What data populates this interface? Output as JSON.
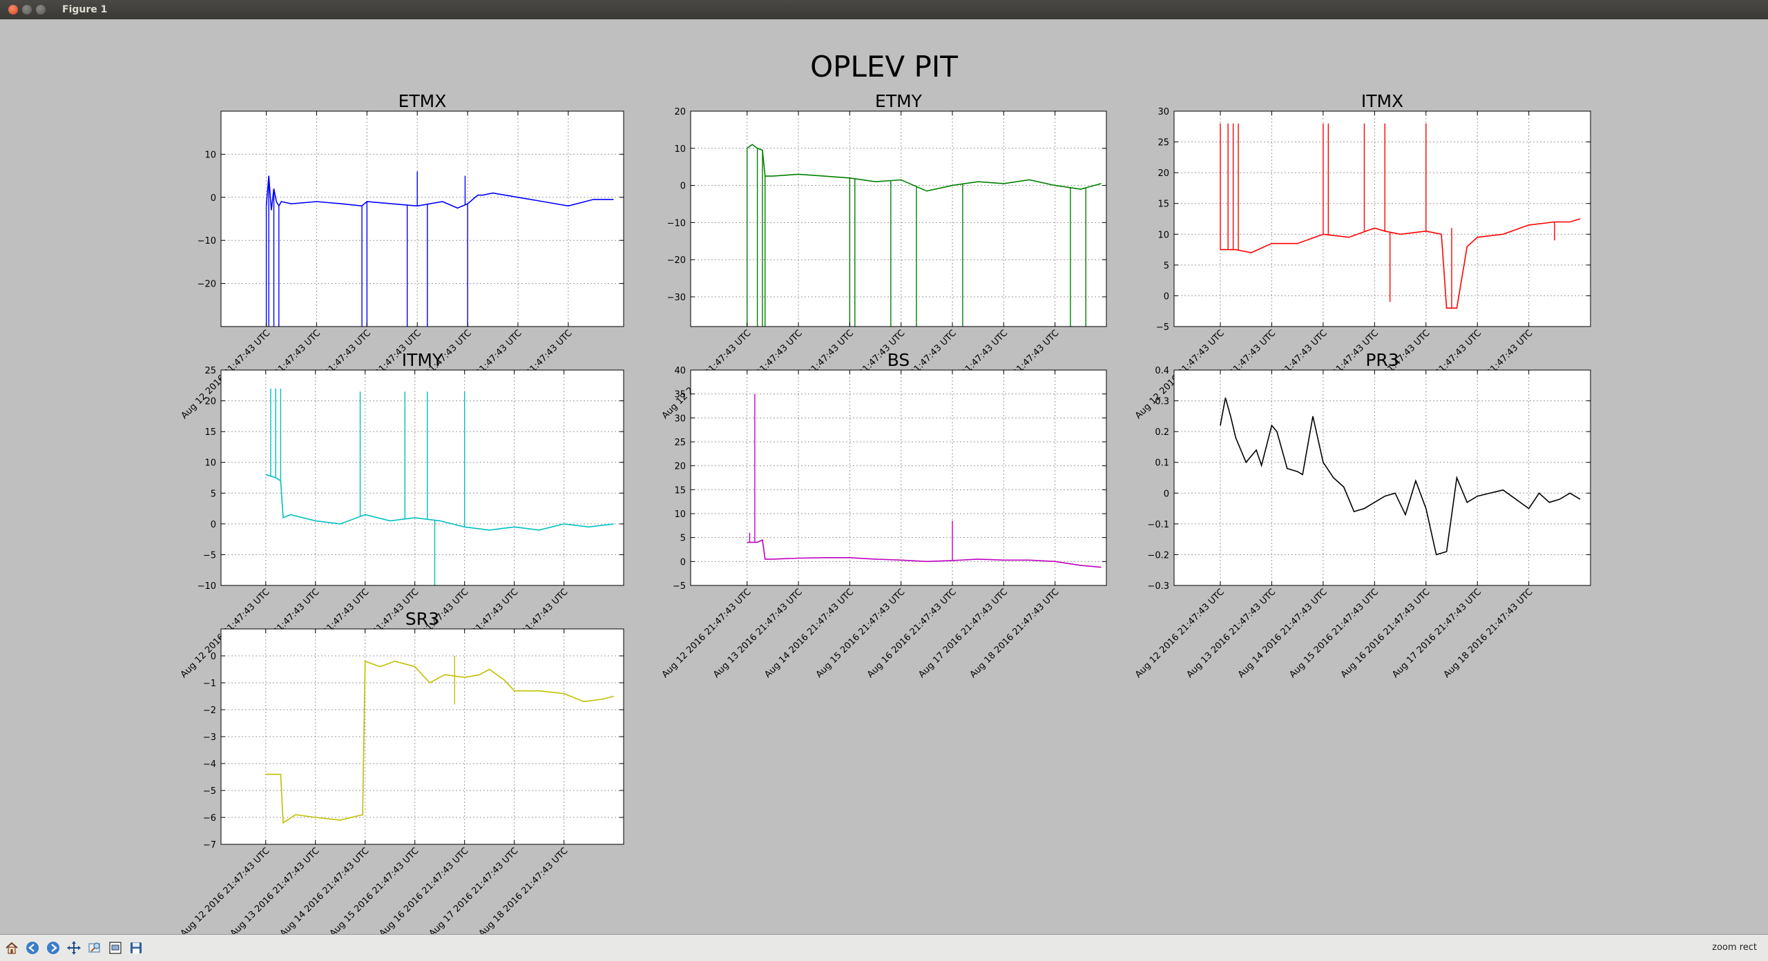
{
  "window": {
    "title": "Figure 1"
  },
  "figure": {
    "suptitle": "OPLEV PIT"
  },
  "toolbar": {
    "buttons": [
      {
        "name": "home-icon"
      },
      {
        "name": "back-icon"
      },
      {
        "name": "forward-icon"
      },
      {
        "name": "pan-icon"
      },
      {
        "name": "zoom-icon"
      },
      {
        "name": "configure-subplots-icon"
      },
      {
        "name": "save-icon"
      }
    ],
    "mode": "zoom rect"
  },
  "chart_data": [
    {
      "type": "line",
      "title": "ETMX",
      "color": "#0000ff",
      "x_tick_labels": [
        "Aug 12 2016 21:47:43 UTC",
        "Aug 13 2016 21:47:43 UTC",
        "Aug 14 2016 21:47:43 UTC",
        "Aug 15 2016 21:47:43 UTC",
        "Aug 16 2016 21:47:43 UTC",
        "Aug 17 2016 21:47:43 UTC",
        "Aug 18 2016 21:47:43 UTC"
      ],
      "xlim": [
        -0.9,
        7.1
      ],
      "ylim": [
        -30,
        20
      ],
      "yticks": [
        -20,
        -10,
        0,
        10
      ],
      "series": [
        {
          "x": [
            0.0,
            0.05,
            0.1,
            0.15,
            0.2,
            0.25,
            0.3,
            0.5,
            1.0,
            1.5,
            1.9,
            2.0,
            2.5,
            3.0,
            3.5,
            3.8,
            4.0,
            4.2,
            4.3,
            4.5,
            5.0,
            5.5,
            6.0,
            6.5,
            6.9
          ],
          "y": [
            -2.0,
            5.0,
            -3.0,
            2.0,
            -1.0,
            -2.0,
            -1.0,
            -1.5,
            -1.0,
            -1.5,
            -2.0,
            -1.0,
            -1.5,
            -2.0,
            -1.0,
            -2.5,
            -1.5,
            0.5,
            0.5,
            1.0,
            0.0,
            -1.0,
            -2.0,
            -0.5,
            -0.5
          ]
        }
      ],
      "spikes": [
        {
          "x": 0.0,
          "y": -30
        },
        {
          "x": 0.05,
          "y": -30
        },
        {
          "x": 0.15,
          "y": -30
        },
        {
          "x": 0.25,
          "y": -30
        },
        {
          "x": 1.9,
          "y": -30
        },
        {
          "x": 2.0,
          "y": -30
        },
        {
          "x": 2.8,
          "y": -30
        },
        {
          "x": 3.2,
          "y": -30
        },
        {
          "x": 3.0,
          "y": 6.0
        },
        {
          "x": 4.0,
          "y": -30
        },
        {
          "x": 3.95,
          "y": 5.0
        }
      ]
    },
    {
      "type": "line",
      "title": "ETMY",
      "color": "#008000",
      "x_tick_labels": [
        "Aug 12 2016 21:47:43 UTC",
        "Aug 13 2016 21:47:43 UTC",
        "Aug 14 2016 21:47:43 UTC",
        "Aug 15 2016 21:47:43 UTC",
        "Aug 16 2016 21:47:43 UTC",
        "Aug 17 2016 21:47:43 UTC",
        "Aug 18 2016 21:47:43 UTC"
      ],
      "xlim": [
        -1.1,
        7.0
      ],
      "ylim": [
        -38,
        20
      ],
      "yticks": [
        -30,
        -20,
        -10,
        0,
        10,
        20
      ],
      "series": [
        {
          "x": [
            0.0,
            0.1,
            0.2,
            0.3,
            0.35,
            0.5,
            1.0,
            1.5,
            2.0,
            2.5,
            3.0,
            3.5,
            4.0,
            4.5,
            5.0,
            5.5,
            6.0,
            6.5,
            6.9
          ],
          "y": [
            10.0,
            11.0,
            10.0,
            9.5,
            2.5,
            2.5,
            3.0,
            2.5,
            2.0,
            1.0,
            1.5,
            -1.5,
            0.0,
            1.0,
            0.5,
            1.5,
            0.0,
            -1.0,
            0.5
          ]
        }
      ],
      "spikes": [
        {
          "x": 0.0,
          "y": -38
        },
        {
          "x": 0.2,
          "y": -38
        },
        {
          "x": 0.3,
          "y": -38
        },
        {
          "x": 0.35,
          "y": -38
        },
        {
          "x": 2.0,
          "y": -38
        },
        {
          "x": 2.1,
          "y": -38
        },
        {
          "x": 2.8,
          "y": -38
        },
        {
          "x": 3.3,
          "y": -38
        },
        {
          "x": 4.2,
          "y": -38
        },
        {
          "x": 6.3,
          "y": -38
        },
        {
          "x": 6.6,
          "y": -38
        }
      ]
    },
    {
      "type": "line",
      "title": "ITMX",
      "color": "#ff0000",
      "x_tick_labels": [
        "Aug 12 2016 21:47:43 UTC",
        "Aug 13 2016 21:47:43 UTC",
        "Aug 14 2016 21:47:43 UTC",
        "Aug 15 2016 21:47:43 UTC",
        "Aug 16 2016 21:47:43 UTC",
        "Aug 17 2016 21:47:43 UTC",
        "Aug 18 2016 21:47:43 UTC"
      ],
      "xlim": [
        -0.9,
        7.2
      ],
      "ylim": [
        -5,
        30
      ],
      "yticks": [
        -5,
        0,
        5,
        10,
        15,
        20,
        25,
        30
      ],
      "series": [
        {
          "x": [
            0.0,
            0.3,
            0.6,
            1.0,
            1.5,
            2.0,
            2.5,
            3.0,
            3.2,
            3.5,
            4.0,
            4.3,
            4.4,
            4.6,
            4.8,
            5.0,
            5.5,
            6.0,
            6.5,
            6.8,
            7.0
          ],
          "y": [
            7.5,
            7.5,
            7.0,
            8.5,
            8.5,
            10.0,
            9.5,
            11.0,
            10.5,
            10.0,
            10.5,
            10.0,
            -2.0,
            -2.0,
            8.0,
            9.5,
            10.0,
            11.5,
            12.0,
            12.0,
            12.5
          ]
        }
      ],
      "spikes": [
        {
          "x": 0.0,
          "y": 28
        },
        {
          "x": 0.15,
          "y": 28
        },
        {
          "x": 0.25,
          "y": 28
        },
        {
          "x": 0.35,
          "y": 28
        },
        {
          "x": 2.0,
          "y": 28
        },
        {
          "x": 2.1,
          "y": 28
        },
        {
          "x": 2.8,
          "y": 28
        },
        {
          "x": 3.2,
          "y": 28
        },
        {
          "x": 3.3,
          "y": -1.0
        },
        {
          "x": 4.0,
          "y": 28
        },
        {
          "x": 4.5,
          "y": 11.0
        },
        {
          "x": 6.5,
          "y": 9.0
        }
      ]
    },
    {
      "type": "line",
      "title": "ITMY",
      "color": "#00bfbf",
      "x_tick_labels": [
        "Aug 12 2016 21:47:43 UTC",
        "Aug 13 2016 21:47:43 UTC",
        "Aug 14 2016 21:47:43 UTC",
        "Aug 15 2016 21:47:43 UTC",
        "Aug 16 2016 21:47:43 UTC",
        "Aug 17 2016 21:47:43 UTC",
        "Aug 18 2016 21:47:43 UTC"
      ],
      "xlim": [
        -0.9,
        7.2
      ],
      "ylim": [
        -10,
        25
      ],
      "yticks": [
        -10,
        -5,
        0,
        5,
        10,
        15,
        20,
        25
      ],
      "series": [
        {
          "x": [
            0.0,
            0.2,
            0.3,
            0.35,
            0.5,
            1.0,
            1.5,
            2.0,
            2.5,
            3.0,
            3.5,
            4.0,
            4.5,
            5.0,
            5.5,
            6.0,
            6.5,
            7.0
          ],
          "y": [
            8.0,
            7.5,
            7.0,
            1.0,
            1.5,
            0.5,
            0.0,
            1.5,
            0.5,
            1.0,
            0.5,
            -0.5,
            -1.0,
            -0.5,
            -1.0,
            0.0,
            -0.5,
            0.0
          ]
        }
      ],
      "spikes": [
        {
          "x": 0.1,
          "y": 22
        },
        {
          "x": 0.2,
          "y": 22
        },
        {
          "x": 0.3,
          "y": 22
        },
        {
          "x": 1.9,
          "y": 21.5
        },
        {
          "x": 2.8,
          "y": 21.5
        },
        {
          "x": 3.25,
          "y": 21.5
        },
        {
          "x": 3.4,
          "y": -10
        },
        {
          "x": 4.0,
          "y": 21.5
        }
      ]
    },
    {
      "type": "line",
      "title": "BS",
      "color": "#bf00bf",
      "x_tick_labels": [
        "Aug 12 2016 21:47:43 UTC",
        "Aug 13 2016 21:47:43 UTC",
        "Aug 14 2016 21:47:43 UTC",
        "Aug 15 2016 21:47:43 UTC",
        "Aug 16 2016 21:47:43 UTC",
        "Aug 17 2016 21:47:43 UTC",
        "Aug 18 2016 21:47:43 UTC"
      ],
      "xlim": [
        -1.1,
        7.0
      ],
      "ylim": [
        -5,
        40
      ],
      "yticks": [
        -5,
        0,
        5,
        10,
        15,
        20,
        25,
        30,
        35,
        40
      ],
      "series": [
        {
          "x": [
            0.0,
            0.2,
            0.3,
            0.35,
            0.5,
            1.0,
            1.5,
            2.0,
            2.5,
            3.0,
            3.5,
            4.0,
            4.5,
            5.0,
            5.5,
            6.0,
            6.5,
            6.9
          ],
          "y": [
            4.0,
            4.0,
            4.5,
            0.5,
            0.5,
            0.7,
            0.8,
            0.8,
            0.5,
            0.3,
            0.0,
            0.2,
            0.5,
            0.3,
            0.3,
            0.0,
            -0.8,
            -1.2
          ]
        }
      ],
      "spikes": [
        {
          "x": 0.15,
          "y": 35
        },
        {
          "x": 0.05,
          "y": 6
        },
        {
          "x": 4.0,
          "y": 8.5
        }
      ]
    },
    {
      "type": "line",
      "title": "PR3",
      "color": "#000000",
      "x_tick_labels": [
        "Aug 12 2016 21:47:43 UTC",
        "Aug 13 2016 21:47:43 UTC",
        "Aug 14 2016 21:47:43 UTC",
        "Aug 15 2016 21:47:43 UTC",
        "Aug 16 2016 21:47:43 UTC",
        "Aug 17 2016 21:47:43 UTC",
        "Aug 18 2016 21:47:43 UTC"
      ],
      "xlim": [
        -0.9,
        7.2
      ],
      "ylim": [
        -0.3,
        0.4
      ],
      "yticks": [
        -0.3,
        -0.2,
        -0.1,
        0.0,
        0.1,
        0.2,
        0.3,
        0.4
      ],
      "series": [
        {
          "x": [
            0.0,
            0.1,
            0.2,
            0.3,
            0.5,
            0.7,
            0.8,
            1.0,
            1.1,
            1.3,
            1.5,
            1.6,
            1.8,
            2.0,
            2.2,
            2.4,
            2.6,
            2.8,
            3.0,
            3.2,
            3.4,
            3.6,
            3.8,
            4.0,
            4.2,
            4.4,
            4.6,
            4.8,
            5.0,
            5.5,
            6.0,
            6.2,
            6.4,
            6.6,
            6.8,
            7.0
          ],
          "y": [
            0.22,
            0.31,
            0.25,
            0.18,
            0.1,
            0.14,
            0.09,
            0.22,
            0.2,
            0.08,
            0.07,
            0.06,
            0.25,
            0.1,
            0.05,
            0.02,
            -0.06,
            -0.05,
            -0.03,
            -0.01,
            0.0,
            -0.07,
            0.04,
            -0.05,
            -0.2,
            -0.19,
            0.05,
            -0.03,
            -0.01,
            0.01,
            -0.05,
            0.0,
            -0.03,
            -0.02,
            0.0,
            -0.02
          ]
        }
      ],
      "spikes": []
    },
    {
      "type": "line",
      "title": "SR3",
      "color": "#bfbf00",
      "x_tick_labels": [
        "Aug 12 2016 21:47:43 UTC",
        "Aug 13 2016 21:47:43 UTC",
        "Aug 14 2016 21:47:43 UTC",
        "Aug 15 2016 21:47:43 UTC",
        "Aug 16 2016 21:47:43 UTC",
        "Aug 17 2016 21:47:43 UTC",
        "Aug 18 2016 21:47:43 UTC"
      ],
      "xlim": [
        -0.9,
        7.2
      ],
      "ylim": [
        -7,
        1
      ],
      "yticks": [
        -7,
        -6,
        -5,
        -4,
        -3,
        -2,
        -1,
        0
      ],
      "series": [
        {
          "x": [
            0.0,
            0.3,
            0.35,
            0.6,
            1.0,
            1.5,
            1.95,
            2.0,
            2.3,
            2.6,
            3.0,
            3.3,
            3.6,
            4.0,
            4.3,
            4.5,
            4.8,
            5.0,
            5.5,
            6.0,
            6.4,
            6.8,
            7.0
          ],
          "y": [
            -4.4,
            -4.4,
            -6.2,
            -5.9,
            -6.0,
            -6.1,
            -5.9,
            -0.2,
            -0.4,
            -0.2,
            -0.4,
            -1.0,
            -0.7,
            -0.8,
            -0.7,
            -0.5,
            -0.9,
            -1.3,
            -1.3,
            -1.4,
            -1.7,
            -1.6,
            -1.5
          ]
        }
      ],
      "spikes": [
        {
          "x": 3.8,
          "y": 0.0
        },
        {
          "x": 3.8,
          "y": -1.8
        }
      ]
    }
  ]
}
